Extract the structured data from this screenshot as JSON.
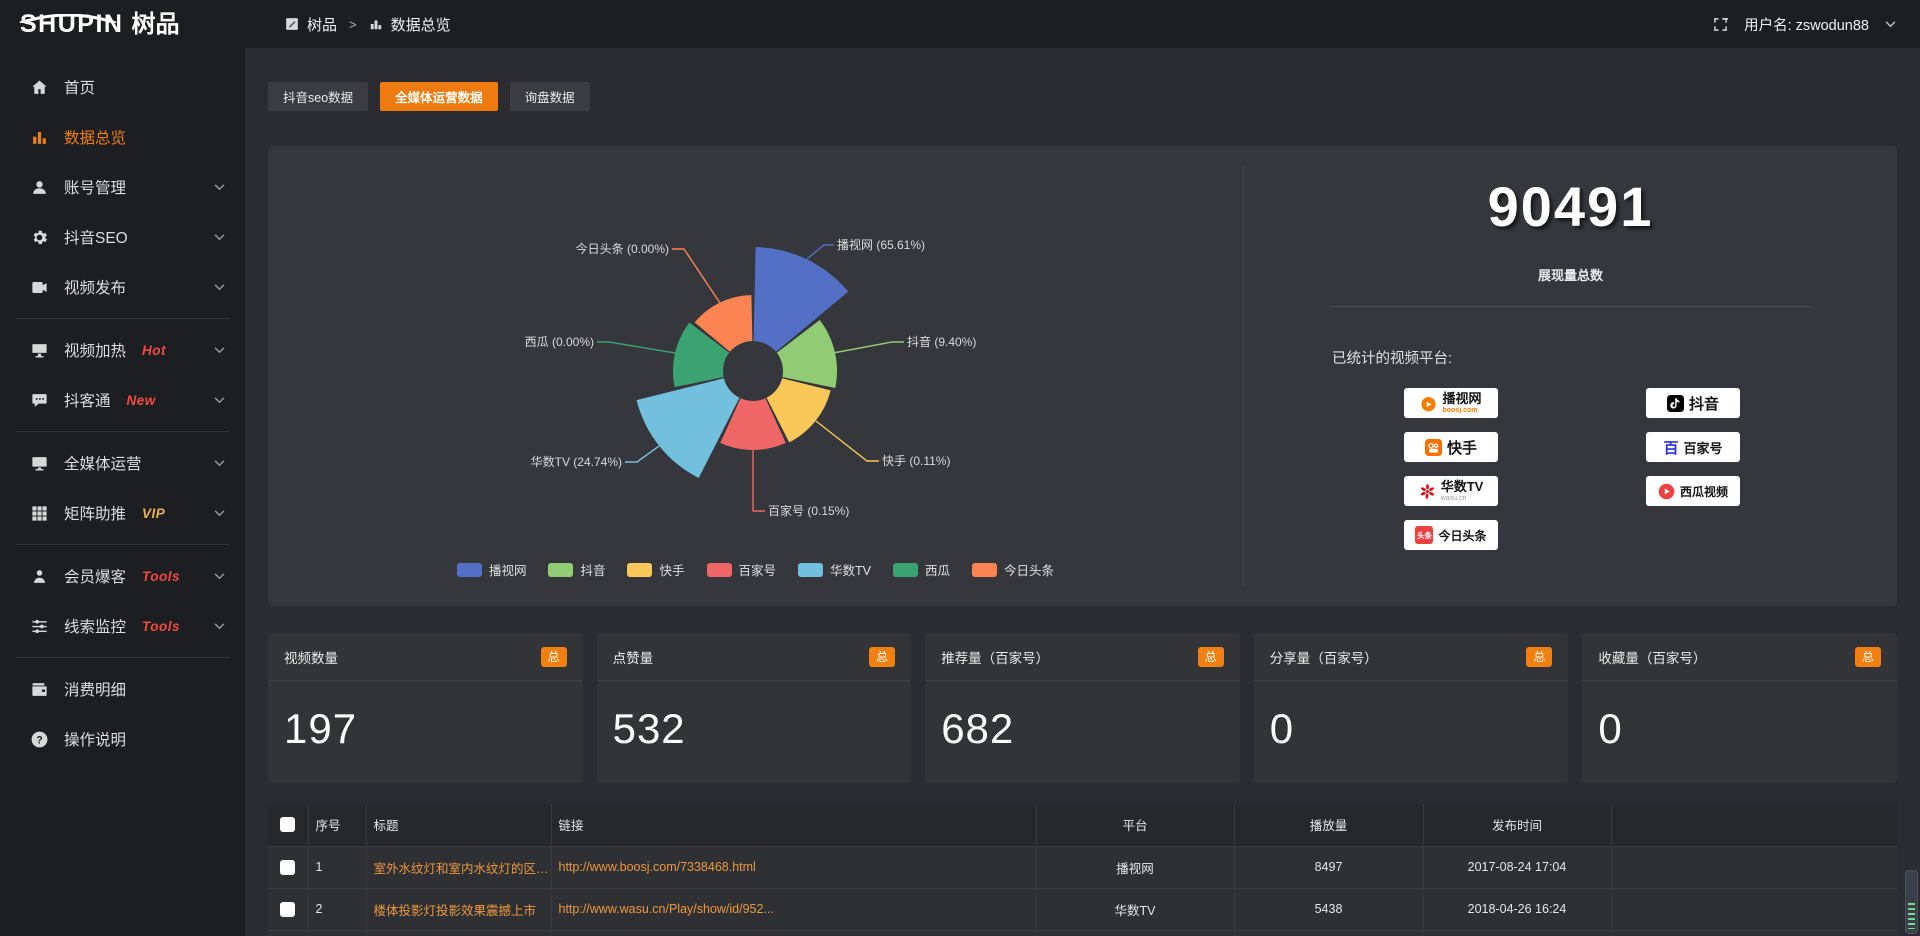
{
  "accent": {
    "orange": "#ee7a12",
    "badge_orange": "#f28011",
    "link_orange": "#ee9840",
    "hot_red": "#f34a3f",
    "vip_yellow": "#efb44b"
  },
  "topbar": {
    "logo_text": "SHUPIN",
    "logo_cn": "树品",
    "breadcrumb": {
      "root": "树品",
      "separator": ">",
      "current": "数据总览"
    },
    "username": "用户名: zswodun88"
  },
  "sidebar": {
    "items": [
      {
        "id": "home",
        "icon": "home-icon",
        "label": "首页"
      },
      {
        "id": "data-overview",
        "icon": "bar-chart-icon",
        "label": "数据总览",
        "active": true
      },
      {
        "id": "account-management",
        "icon": "user-icon",
        "label": "账号管理",
        "chevron": true
      },
      {
        "id": "douyin-seo",
        "icon": "gear-icon",
        "label": "抖音SEO",
        "chevron": true
      },
      {
        "id": "video-publish",
        "icon": "video-icon",
        "label": "视频发布",
        "chevron": true
      },
      {
        "type": "divider"
      },
      {
        "id": "video-heat",
        "icon": "screen-icon",
        "label": "视频加热",
        "badge": "Hot",
        "badge_color": "red",
        "chevron": true
      },
      {
        "id": "douketong",
        "icon": "chat-icon",
        "label": "抖客通",
        "badge": "New",
        "badge_color": "red",
        "chevron": true
      },
      {
        "type": "divider"
      },
      {
        "id": "omni-media",
        "icon": "monitor-icon",
        "label": "全媒体运营",
        "chevron": true
      },
      {
        "id": "matrix-boost",
        "icon": "grid-icon",
        "label": "矩阵助推",
        "badge": "VIP",
        "badge_color": "yellow",
        "chevron": true
      },
      {
        "type": "divider"
      },
      {
        "id": "member-baoke",
        "icon": "person-icon",
        "label": "会员爆客",
        "badge": "Tools",
        "badge_color": "red",
        "chevron": true
      },
      {
        "id": "lead-monitor",
        "icon": "sliders-icon",
        "label": "线索监控",
        "badge": "Tools",
        "badge_color": "red",
        "chevron": true
      },
      {
        "type": "divider"
      },
      {
        "id": "consumption-detail",
        "icon": "wallet-icon",
        "label": "消费明细"
      },
      {
        "id": "operation-guide",
        "icon": "help-icon",
        "label": "操作说明"
      }
    ]
  },
  "tabs": {
    "items": [
      {
        "id": "douyin-seo-data",
        "label": "抖音seo数据"
      },
      {
        "id": "omni-media-data",
        "label": "全媒体运营数据"
      },
      {
        "id": "inquiry-data",
        "label": "询盘数据"
      }
    ],
    "active_index": 1
  },
  "chart_data": {
    "type": "pie",
    "subtype": "nightingale-rose",
    "legend_position": "bottom",
    "label_format": "name (pct%)",
    "items": [
      {
        "name": "播视网",
        "pct": 65.61,
        "color": "#5470c6"
      },
      {
        "name": "抖音",
        "pct": 9.4,
        "color": "#91cc75"
      },
      {
        "name": "快手",
        "pct": 0.11,
        "color": "#fac858"
      },
      {
        "name": "百家号",
        "pct": 0.15,
        "color": "#ee6666"
      },
      {
        "name": "华数TV",
        "pct": 24.74,
        "color": "#73c0de"
      },
      {
        "name": "西瓜",
        "pct": 0.0,
        "color": "#3ba272"
      },
      {
        "name": "今日头条",
        "pct": 0.0,
        "color": "#fc8452"
      }
    ]
  },
  "summary": {
    "total_value": "90491",
    "total_label": "展现量总数",
    "platforms_title": "已统计的视频平台:",
    "platform_columns": [
      [
        {
          "id": "boosj",
          "name": "播视网",
          "sub": "boosj.com"
        },
        {
          "id": "kuaishou",
          "name": "快手"
        },
        {
          "id": "wasu",
          "name": "华数TV",
          "sub": "wasu.cn"
        },
        {
          "id": "toutiao",
          "name": "今日头条"
        }
      ],
      [
        {
          "id": "douyin",
          "name": "抖音"
        },
        {
          "id": "baijiahao",
          "name": "百家号"
        },
        {
          "id": "xigua",
          "name": "西瓜视频"
        }
      ]
    ]
  },
  "stat_cards": [
    {
      "label": "视频数量",
      "badge": "总",
      "value": "197"
    },
    {
      "label": "点赞量",
      "badge": "总",
      "value": "532"
    },
    {
      "label": "推荐量（百家号）",
      "badge": "总",
      "value": "682"
    },
    {
      "label": "分享量（百家号）",
      "badge": "总",
      "value": "0"
    },
    {
      "label": "收藏量（百家号）",
      "badge": "总",
      "value": "0"
    }
  ],
  "table": {
    "headers": {
      "index": "序号",
      "title": "标题",
      "link": "链接",
      "platform": "平台",
      "views": "播放量",
      "time": "发布时间"
    },
    "rows": [
      {
        "index": "1",
        "title": "室外水纹灯和室内水纹灯的区别和简介",
        "link": "http://www.boosj.com/7338468.html",
        "platform": "播视网",
        "views": "8497",
        "time": "2017-08-24 17:04"
      },
      {
        "index": "2",
        "title": "楼体投影灯投影效果震撼上市",
        "link": "http://www.wasu.cn/Play/show/id/952...",
        "platform": "华数TV",
        "views": "5438",
        "time": "2018-04-26 16:24"
      }
    ]
  }
}
